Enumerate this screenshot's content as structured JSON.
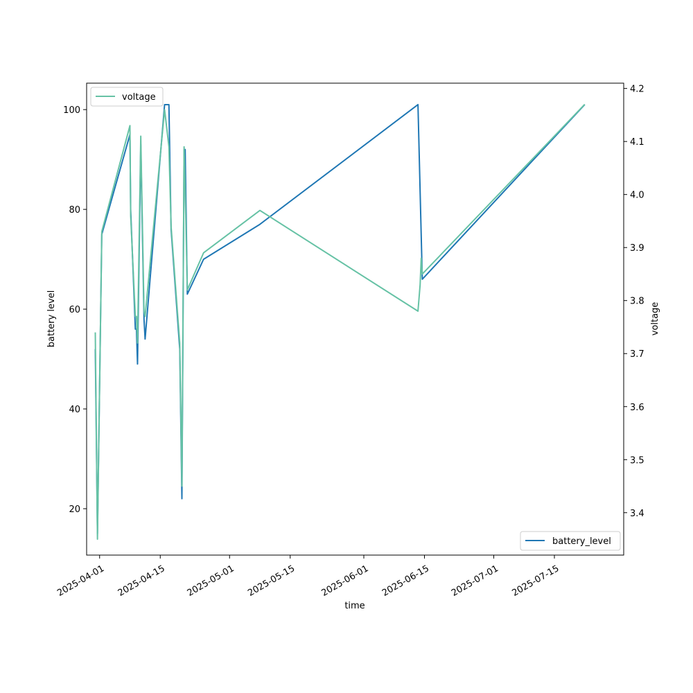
{
  "chart_data": {
    "type": "line",
    "title": "",
    "xlabel": "time",
    "ylabel_left": "battery level",
    "ylabel_right": "voltage",
    "x_ticks": [
      "2025-04-01",
      "2025-04-15",
      "2025-05-01",
      "2025-05-15",
      "2025-06-01",
      "2025-06-15",
      "2025-07-01",
      "2025-07-15"
    ],
    "x_range": [
      "2025-03-29",
      "2025-07-31"
    ],
    "y_left_ticks": [
      20,
      40,
      60,
      80,
      100
    ],
    "y_left_range": [
      10.7,
      105.3
    ],
    "y_right_ticks": [
      3.4,
      3.5,
      3.6,
      3.7,
      3.8,
      3.9,
      4.0,
      4.1,
      4.2
    ],
    "y_right_range": [
      3.32,
      4.21
    ],
    "grid": false,
    "series": [
      {
        "name": "battery_level",
        "axis": "left",
        "color": "#1f77b4",
        "legend_position": "lower-right",
        "points": [
          [
            "2025-03-31 00:00",
            52
          ],
          [
            "2025-03-31 12:00",
            15
          ],
          [
            "2025-04-01 12:00",
            75
          ],
          [
            "2025-04-08 00:00",
            95
          ],
          [
            "2025-04-08 04:00",
            80
          ],
          [
            "2025-04-09 06:00",
            56
          ],
          [
            "2025-04-09 12:00",
            56
          ],
          [
            "2025-04-09 18:00",
            49
          ],
          [
            "2025-04-10 12:00",
            93
          ],
          [
            "2025-04-11 06:00",
            58
          ],
          [
            "2025-04-11 12:00",
            54
          ],
          [
            "2025-04-16 00:00",
            101
          ],
          [
            "2025-04-17 00:00",
            101
          ],
          [
            "2025-04-17 12:00",
            76
          ],
          [
            "2025-04-19 12:00",
            52
          ],
          [
            "2025-04-20 00:00",
            22
          ],
          [
            "2025-04-20 12:00",
            92
          ],
          [
            "2025-04-20 18:00",
            92
          ],
          [
            "2025-04-21 06:00",
            63
          ],
          [
            "2025-04-25 00:00",
            70
          ],
          [
            "2025-05-08 00:00",
            77
          ],
          [
            "2025-06-13 12:00",
            101
          ],
          [
            "2025-06-14 12:00",
            66
          ],
          [
            "2025-07-22 00:00",
            101
          ]
        ]
      },
      {
        "name": "voltage",
        "axis": "right",
        "color": "#66c2a5",
        "legend_position": "upper-left",
        "points": [
          [
            "2025-03-31 00:00",
            3.74
          ],
          [
            "2025-03-31 12:00",
            3.35
          ],
          [
            "2025-04-01 12:00",
            3.93
          ],
          [
            "2025-04-08 00:00",
            4.13
          ],
          [
            "2025-04-08 04:00",
            3.96
          ],
          [
            "2025-04-09 06:00",
            3.77
          ],
          [
            "2025-04-09 12:00",
            3.77
          ],
          [
            "2025-04-09 18:00",
            3.72
          ],
          [
            "2025-04-10 12:00",
            4.11
          ],
          [
            "2025-04-11 06:00",
            3.78
          ],
          [
            "2025-04-11 12:00",
            3.77
          ],
          [
            "2025-04-16 00:00",
            4.16
          ],
          [
            "2025-04-17 00:00",
            4.09
          ],
          [
            "2025-04-17 12:00",
            3.94
          ],
          [
            "2025-04-19 12:00",
            3.72
          ],
          [
            "2025-04-20 00:00",
            3.45
          ],
          [
            "2025-04-20 12:00",
            4.09
          ],
          [
            "2025-04-20 18:00",
            4.01
          ],
          [
            "2025-04-21 06:00",
            3.82
          ],
          [
            "2025-04-25 00:00",
            3.89
          ],
          [
            "2025-05-08 00:00",
            3.97
          ],
          [
            "2025-06-13 12:00",
            3.78
          ],
          [
            "2025-06-14 00:00",
            3.83
          ],
          [
            "2025-06-14 06:00",
            3.88
          ],
          [
            "2025-06-14 12:00",
            3.85
          ],
          [
            "2025-07-22 00:00",
            4.17
          ]
        ]
      }
    ]
  }
}
